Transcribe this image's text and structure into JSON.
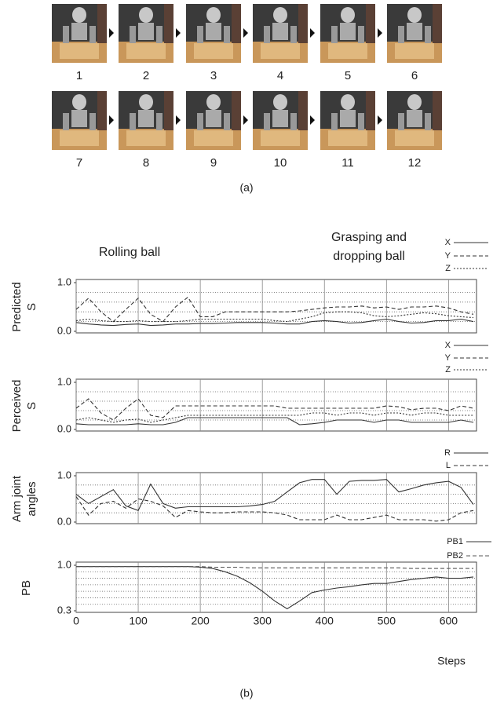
{
  "photos": {
    "labels": [
      "1",
      "2",
      "3",
      "4",
      "5",
      "6",
      "7",
      "8",
      "9",
      "10",
      "11",
      "12"
    ],
    "caption": "(a)"
  },
  "caption_b": "(b)",
  "chart_data": [
    {
      "type": "line",
      "ylabel": [
        "Predicted",
        "S"
      ],
      "annotations": [
        "Rolling ball",
        [
          "Grasping and",
          "dropping ball"
        ]
      ],
      "x": [
        0,
        20,
        40,
        60,
        80,
        100,
        120,
        140,
        160,
        180,
        200,
        220,
        240,
        260,
        280,
        300,
        320,
        340,
        360,
        380,
        400,
        420,
        440,
        460,
        480,
        500,
        520,
        540,
        560,
        580,
        600,
        620,
        640
      ],
      "xlim": [
        0,
        640
      ],
      "xticks": [
        0,
        100,
        200,
        300,
        400,
        500,
        600
      ],
      "ylim": [
        0,
        1
      ],
      "yticks": [
        {
          "value": 0,
          "label": "0.0"
        },
        {
          "value": 1,
          "label": "1.0"
        }
      ],
      "grid_lines": [
        0.2,
        0.4,
        0.6,
        0.8
      ],
      "series": [
        {
          "name": "X",
          "style": "solid",
          "color": "#333333",
          "values": [
            0.18,
            0.15,
            0.13,
            0.12,
            0.14,
            0.15,
            0.12,
            0.13,
            0.15,
            0.15,
            0.16,
            0.16,
            0.17,
            0.18,
            0.18,
            0.18,
            0.17,
            0.15,
            0.15,
            0.2,
            0.22,
            0.2,
            0.17,
            0.18,
            0.22,
            0.25,
            0.2,
            0.17,
            0.18,
            0.22,
            0.22,
            0.25,
            0.2
          ]
        },
        {
          "name": "Y",
          "style": "dashed",
          "color": "#333333",
          "values": [
            0.45,
            0.68,
            0.4,
            0.2,
            0.45,
            0.68,
            0.35,
            0.2,
            0.5,
            0.7,
            0.3,
            0.3,
            0.4,
            0.4,
            0.4,
            0.4,
            0.4,
            0.4,
            0.42,
            0.45,
            0.48,
            0.5,
            0.5,
            0.52,
            0.48,
            0.5,
            0.45,
            0.5,
            0.5,
            0.52,
            0.48,
            0.4,
            0.35
          ]
        },
        {
          "name": "Z",
          "style": "dotted",
          "color": "#333333",
          "values": [
            0.22,
            0.25,
            0.22,
            0.2,
            0.2,
            0.22,
            0.2,
            0.2,
            0.2,
            0.22,
            0.25,
            0.25,
            0.25,
            0.25,
            0.25,
            0.25,
            0.22,
            0.2,
            0.25,
            0.3,
            0.38,
            0.4,
            0.4,
            0.38,
            0.32,
            0.3,
            0.32,
            0.35,
            0.38,
            0.36,
            0.32,
            0.3,
            0.28
          ]
        }
      ]
    },
    {
      "type": "line",
      "ylabel": [
        "Perceived",
        "S"
      ],
      "x": [
        0,
        20,
        40,
        60,
        80,
        100,
        120,
        140,
        160,
        180,
        200,
        220,
        240,
        260,
        280,
        300,
        320,
        340,
        360,
        380,
        400,
        420,
        440,
        460,
        480,
        500,
        520,
        540,
        560,
        580,
        600,
        620,
        640
      ],
      "xlim": [
        0,
        640
      ],
      "xticks": [
        0,
        100,
        200,
        300,
        400,
        500,
        600
      ],
      "ylim": [
        0,
        1
      ],
      "yticks": [
        {
          "value": 0,
          "label": "0.0"
        },
        {
          "value": 1,
          "label": "1.0"
        }
      ],
      "grid_lines": [
        0.2,
        0.4,
        0.6,
        0.8
      ],
      "series": [
        {
          "name": "X",
          "style": "solid",
          "color": "#333333",
          "values": [
            0.12,
            0.1,
            0.1,
            0.1,
            0.1,
            0.12,
            0.1,
            0.1,
            0.15,
            0.25,
            0.25,
            0.25,
            0.25,
            0.25,
            0.25,
            0.25,
            0.25,
            0.25,
            0.1,
            0.12,
            0.15,
            0.2,
            0.2,
            0.2,
            0.15,
            0.2,
            0.2,
            0.15,
            0.15,
            0.15,
            0.15,
            0.2,
            0.15
          ]
        },
        {
          "name": "Y",
          "style": "dashed",
          "color": "#333333",
          "values": [
            0.45,
            0.65,
            0.35,
            0.2,
            0.45,
            0.65,
            0.3,
            0.25,
            0.5,
            0.5,
            0.5,
            0.5,
            0.5,
            0.5,
            0.5,
            0.5,
            0.5,
            0.45,
            0.45,
            0.45,
            0.45,
            0.45,
            0.45,
            0.45,
            0.45,
            0.5,
            0.48,
            0.42,
            0.45,
            0.45,
            0.4,
            0.5,
            0.45
          ]
        },
        {
          "name": "Z",
          "style": "dotted",
          "color": "#333333",
          "values": [
            0.2,
            0.25,
            0.2,
            0.15,
            0.2,
            0.22,
            0.15,
            0.2,
            0.25,
            0.3,
            0.3,
            0.3,
            0.3,
            0.3,
            0.3,
            0.3,
            0.3,
            0.3,
            0.3,
            0.35,
            0.35,
            0.3,
            0.35,
            0.35,
            0.3,
            0.35,
            0.35,
            0.3,
            0.35,
            0.35,
            0.3,
            0.3,
            0.3
          ]
        }
      ]
    },
    {
      "type": "line",
      "ylabel": [
        "Arm joint",
        "angles"
      ],
      "x": [
        0,
        20,
        40,
        60,
        80,
        100,
        120,
        140,
        160,
        180,
        200,
        220,
        240,
        260,
        280,
        300,
        320,
        340,
        360,
        380,
        400,
        420,
        440,
        460,
        480,
        500,
        520,
        540,
        560,
        580,
        600,
        620,
        640
      ],
      "xlim": [
        0,
        640
      ],
      "xticks": [
        0,
        100,
        200,
        300,
        400,
        500,
        600
      ],
      "ylim": [
        0,
        1
      ],
      "yticks": [
        {
          "value": 0,
          "label": "0.0"
        },
        {
          "value": 1,
          "label": "1.0"
        }
      ],
      "grid_lines": [
        0.2,
        0.4,
        0.6,
        0.8
      ],
      "series": [
        {
          "name": "R",
          "style": "solid",
          "color": "#333333",
          "values": [
            0.6,
            0.4,
            0.55,
            0.7,
            0.35,
            0.25,
            0.82,
            0.4,
            0.3,
            0.33,
            0.33,
            0.33,
            0.33,
            0.33,
            0.35,
            0.38,
            0.45,
            0.65,
            0.85,
            0.92,
            0.92,
            0.6,
            0.88,
            0.9,
            0.9,
            0.92,
            0.65,
            0.72,
            0.8,
            0.85,
            0.88,
            0.75,
            0.38
          ]
        },
        {
          "name": "L",
          "style": "dashed",
          "color": "#333333",
          "values": [
            0.55,
            0.15,
            0.4,
            0.45,
            0.3,
            0.5,
            0.45,
            0.35,
            0.1,
            0.25,
            0.22,
            0.2,
            0.2,
            0.22,
            0.22,
            0.22,
            0.2,
            0.15,
            0.05,
            0.05,
            0.05,
            0.15,
            0.05,
            0.05,
            0.1,
            0.15,
            0.05,
            0.05,
            0.05,
            0.02,
            0.05,
            0.2,
            0.25
          ]
        }
      ]
    },
    {
      "type": "line",
      "ylabel": [
        "PB"
      ],
      "xlabel": "Steps",
      "xtick_labels": true,
      "x": [
        0,
        20,
        40,
        60,
        80,
        100,
        120,
        140,
        160,
        180,
        200,
        220,
        240,
        260,
        280,
        300,
        320,
        340,
        360,
        380,
        400,
        420,
        440,
        460,
        480,
        500,
        520,
        540,
        560,
        580,
        600,
        620,
        640
      ],
      "xlim": [
        0,
        640
      ],
      "xticks": [
        0,
        100,
        200,
        300,
        400,
        500,
        600
      ],
      "ylim": [
        0.3,
        1
      ],
      "yticks": [
        {
          "value": 0.3,
          "label": "0.3"
        },
        {
          "value": 1,
          "label": "1.0"
        }
      ],
      "grid_lines": [
        0.4,
        0.5,
        0.6,
        0.7,
        0.8,
        0.9
      ],
      "series": [
        {
          "name": "PB1",
          "style": "solid",
          "color": "#333333",
          "values": [
            0.98,
            0.98,
            0.98,
            0.98,
            0.98,
            0.98,
            0.98,
            0.98,
            0.98,
            0.98,
            0.97,
            0.95,
            0.9,
            0.83,
            0.73,
            0.6,
            0.45,
            0.33,
            0.45,
            0.58,
            0.62,
            0.65,
            0.67,
            0.7,
            0.72,
            0.72,
            0.75,
            0.78,
            0.8,
            0.82,
            0.8,
            0.8,
            0.82
          ]
        },
        {
          "name": "PB2",
          "style": "dashed",
          "color": "#555555",
          "values": [
            0.98,
            0.98,
            0.98,
            0.98,
            0.98,
            0.98,
            0.98,
            0.98,
            0.98,
            0.98,
            0.98,
            0.97,
            0.97,
            0.97,
            0.96,
            0.96,
            0.96,
            0.96,
            0.96,
            0.96,
            0.96,
            0.96,
            0.96,
            0.96,
            0.96,
            0.96,
            0.96,
            0.95,
            0.95,
            0.95,
            0.95,
            0.95,
            0.95
          ]
        }
      ]
    }
  ]
}
